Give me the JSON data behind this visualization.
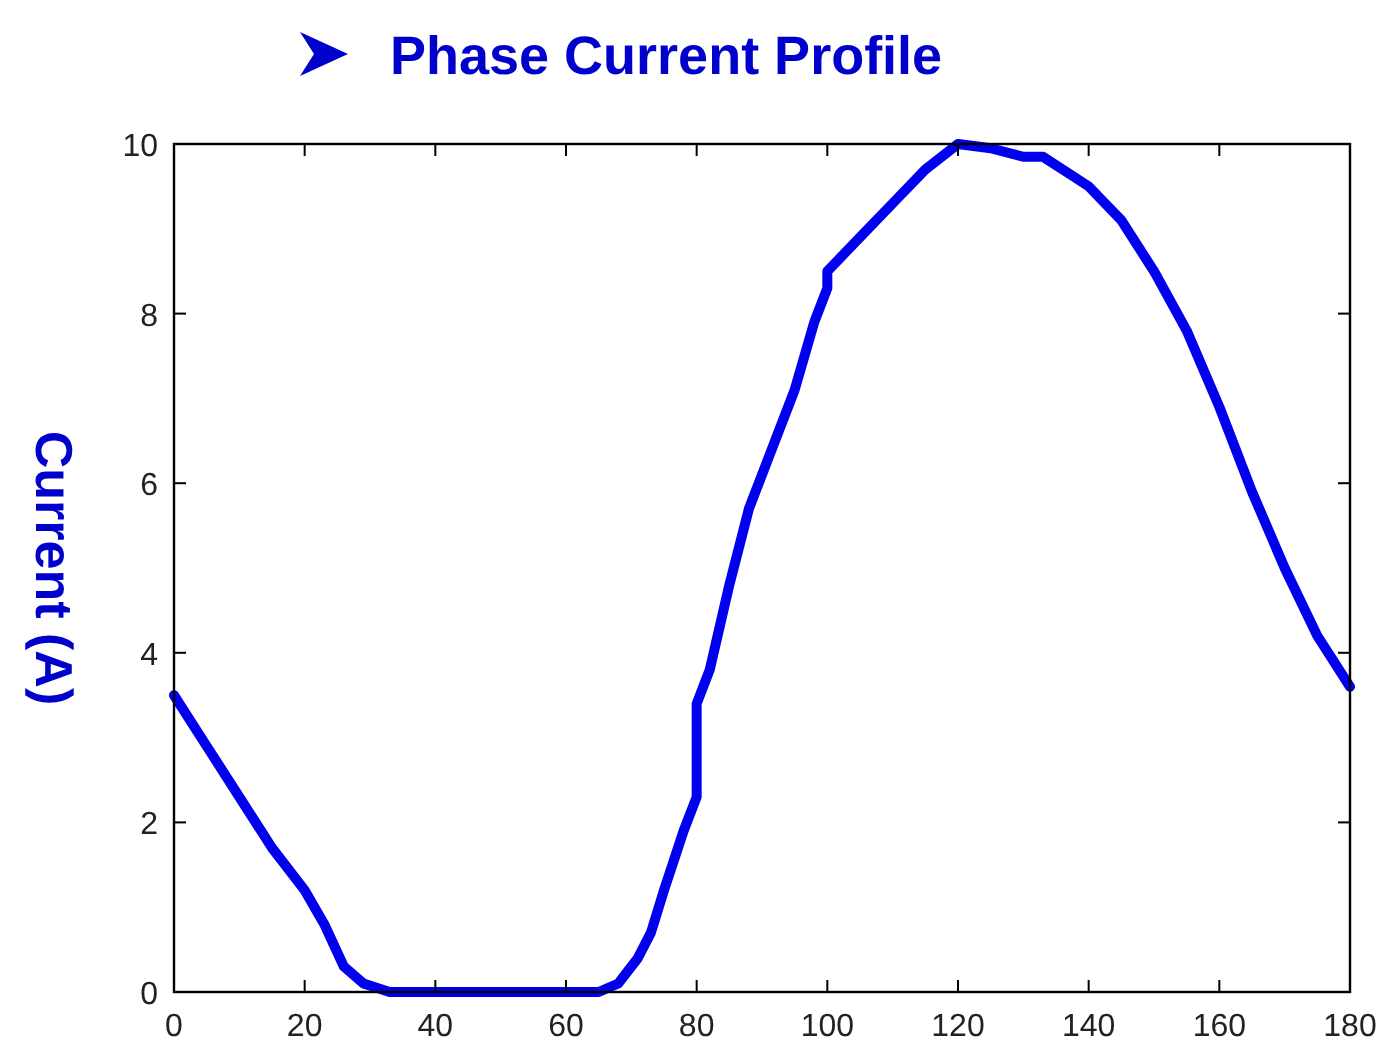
{
  "chart_data": {
    "type": "line",
    "title": "Phase Current Profile",
    "ylabel": "Current (A)",
    "x": [
      0,
      5,
      10,
      15,
      20,
      23,
      26,
      29,
      33,
      65,
      68,
      71,
      73,
      75,
      78,
      80,
      80,
      82,
      85,
      88,
      91,
      95,
      98,
      100,
      100,
      105,
      110,
      115,
      120,
      125,
      130,
      133,
      137,
      140,
      145,
      150,
      155,
      160,
      165,
      170,
      175,
      180
    ],
    "series": [
      {
        "color": "#0000ee",
        "values": [
          3.5,
          2.9,
          2.3,
          1.7,
          1.2,
          0.8,
          0.3,
          0.1,
          0,
          0,
          0.1,
          0.4,
          0.7,
          1.2,
          1.9,
          2.3,
          3.4,
          3.8,
          4.8,
          5.7,
          6.3,
          7.1,
          7.9,
          8.3,
          8.5,
          8.9,
          9.3,
          9.7,
          10,
          9.95,
          9.85,
          9.85,
          9.65,
          9.5,
          9.1,
          8.5,
          7.8,
          6.9,
          5.9,
          5.0,
          4.2,
          3.6
        ]
      }
    ],
    "xlim": [
      0,
      180
    ],
    "xticks": [
      0,
      20,
      40,
      60,
      80,
      100,
      120,
      140,
      160,
      180
    ],
    "ylim": [
      0,
      10
    ],
    "yticks": [
      0,
      2,
      4,
      6,
      8,
      10
    ],
    "grid": false,
    "marker": "none",
    "line_style": "solid"
  }
}
